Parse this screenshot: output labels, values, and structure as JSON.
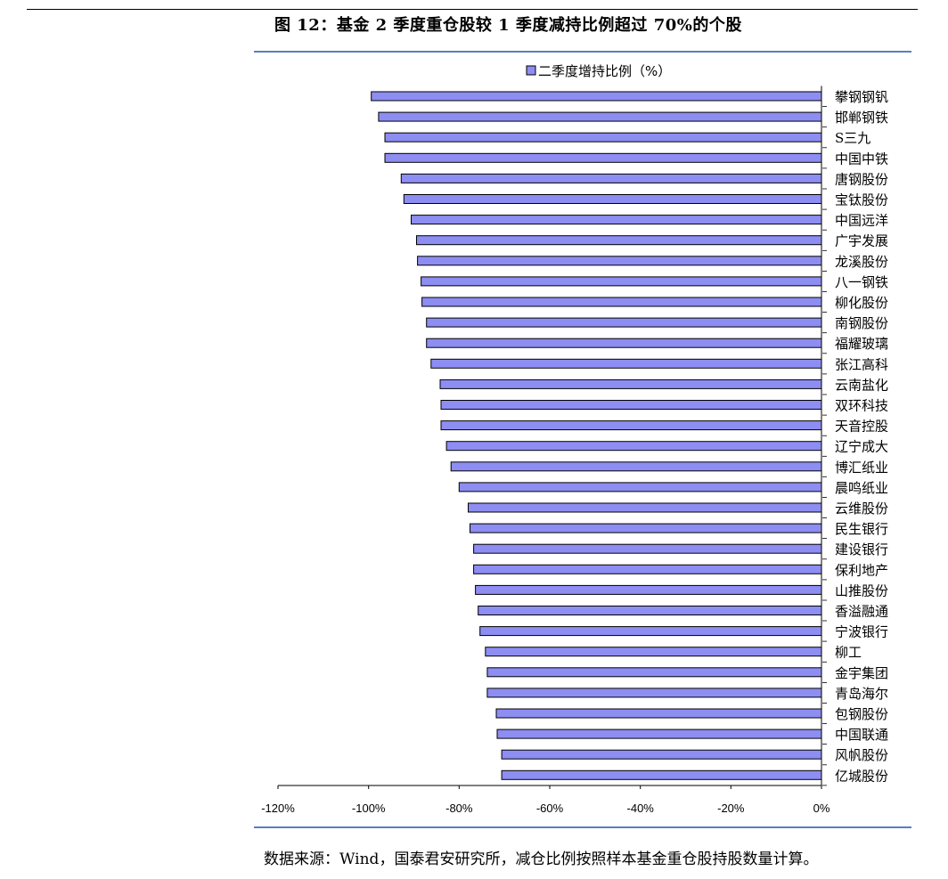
{
  "figure_title": "图 12：基金 2 季度重仓股较 1 季度减持比例超过 70%的个股",
  "source_note": "数据来源：Wind，国泰君安研究所，减仓比例按照样本基金重仓股持股数量计算。",
  "colors": {
    "bar_fill": "#8d8df2",
    "bar_stroke": "#000000",
    "accent_rule": "#5b7dbf"
  },
  "chart_data": {
    "type": "bar",
    "orientation": "horizontal",
    "legend_position": "top",
    "xlim": [
      -120,
      0
    ],
    "x_ticks": [
      -120,
      -100,
      -80,
      -60,
      -40,
      -20,
      0
    ],
    "x_tick_labels": [
      "-120%",
      "-100%",
      "-80%",
      "-60%",
      "-40%",
      "-20%",
      "0%"
    ],
    "series": [
      {
        "name": "二季度增持比例（%）",
        "values": [
          -99.4,
          -97.8,
          -96.4,
          -96.4,
          -92.8,
          -92.2,
          -90.6,
          -89.4,
          -89.2,
          -88.4,
          -88.2,
          -87.2,
          -87.2,
          -86.2,
          -84.2,
          -84.0,
          -84.0,
          -82.8,
          -81.8,
          -80.0,
          -78.0,
          -77.6,
          -76.8,
          -76.8,
          -76.4,
          -75.8,
          -75.4,
          -74.2,
          -73.8,
          -73.8,
          -71.8,
          -71.6,
          -70.6,
          -70.6
        ]
      }
    ],
    "categories": [
      "攀钢钢钒",
      "邯郸钢铁",
      "S三九",
      "中国中铁",
      "唐钢股份",
      "宝钛股份",
      "中国远洋",
      "广宇发展",
      "龙溪股份",
      "八一钢铁",
      "柳化股份",
      "南钢股份",
      "福耀玻璃",
      "张江高科",
      "云南盐化",
      "双环科技",
      "天音控股",
      "辽宁成大",
      "博汇纸业",
      "晨鸣纸业",
      "云维股份",
      "民生银行",
      "建设银行",
      "保利地产",
      "山推股份",
      "香溢融通",
      "宁波银行",
      "柳工",
      "金宇集团",
      "青岛海尔",
      "包钢股份",
      "中国联通",
      "风帆股份",
      "亿城股份"
    ]
  }
}
